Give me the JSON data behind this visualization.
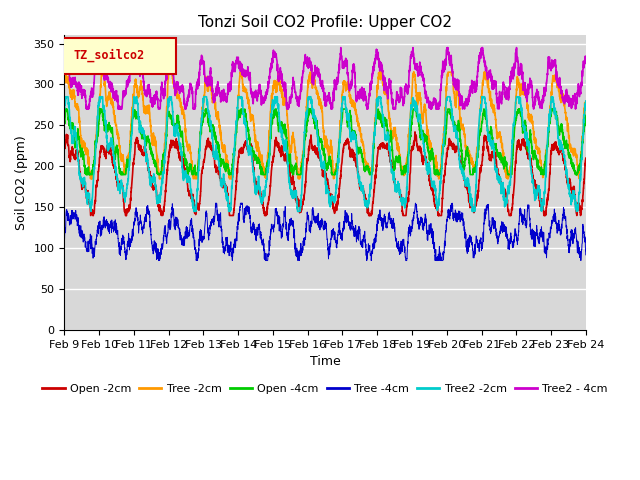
{
  "title": "Tonzi Soil CO2 Profile: Upper CO2",
  "xlabel": "Time",
  "ylabel": "Soil CO2 (ppm)",
  "ylim": [
    0,
    360
  ],
  "yticks": [
    0,
    50,
    100,
    150,
    200,
    250,
    300,
    350
  ],
  "num_points": 3600,
  "legend_label": "TZ_soilco2",
  "series": [
    {
      "name": "Open -2cm",
      "color": "#cc0000",
      "lw": 1.2
    },
    {
      "name": "Tree -2cm",
      "color": "#ff9900",
      "lw": 1.2
    },
    {
      "name": "Open -4cm",
      "color": "#00cc00",
      "lw": 1.2
    },
    {
      "name": "Tree -4cm",
      "color": "#0000cc",
      "lw": 0.7
    },
    {
      "name": "Tree2 -2cm",
      "color": "#00cccc",
      "lw": 1.2
    },
    {
      "name": "Tree2 - 4cm",
      "color": "#cc00cc",
      "lw": 1.2
    }
  ],
  "x_tick_labels": [
    "Feb 9",
    "Feb 10",
    "Feb 11",
    "Feb 12",
    "Feb 13",
    "Feb 14",
    "Feb 15",
    "Feb 16",
    "Feb 17",
    "Feb 18",
    "Feb 19",
    "Feb 20",
    "Feb 21",
    "Feb 22",
    "Feb 23",
    "Feb 24"
  ],
  "plot_bg": "#d8d8d8",
  "fig_bg": "#ffffff",
  "grid_color": "#ffffff",
  "box_facecolor": "#ffffcc",
  "box_edgecolor": "#cc0000",
  "box_textcolor": "#cc0000"
}
